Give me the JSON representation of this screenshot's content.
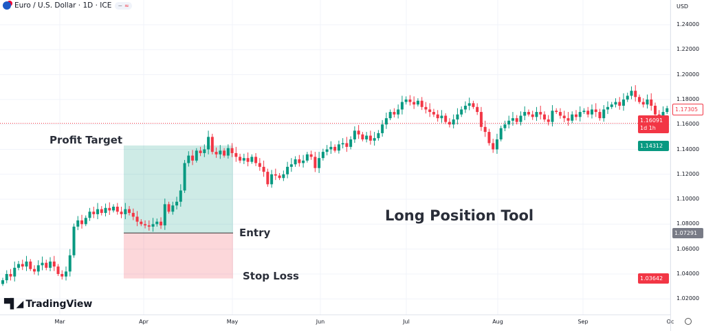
{
  "header": {
    "title": "Euro / U.S. Dollar · 1D · ICE",
    "pill_a": "−",
    "pill_b": "≈"
  },
  "axis": {
    "currency": "USD",
    "ticks": [
      "1.24000",
      "1.22000",
      "1.20000",
      "1.18000",
      "1.16000",
      "1.14000",
      "1.12000",
      "1.10000",
      "1.08000",
      "1.06000",
      "1.04000",
      "1.02000"
    ],
    "badges": {
      "last": "1.17305",
      "current": "1.16091",
      "countdown": "1d 1h",
      "target": "1.14312",
      "entry": "1.07291",
      "stop": "1.03642"
    }
  },
  "xaxis": [
    "Mar",
    "Apr",
    "May",
    "Jun",
    "Jul",
    "Aug",
    "Sep",
    "Oc"
  ],
  "annotations": {
    "profit": "Profit Target",
    "entry": "Entry",
    "stop": "Stop Loss",
    "tool": "Long Position Tool"
  },
  "logo": "TradingView",
  "colors": {
    "up": "#089981",
    "down": "#f23645",
    "target_fill": "rgba(8,153,129,0.2)",
    "stop_fill": "rgba(242,54,69,0.2)"
  },
  "chart_data": {
    "type": "candlestick",
    "ylim": [
      1.0,
      1.25
    ],
    "position": {
      "target": 1.14312,
      "entry": 1.07291,
      "stop": 1.03642
    },
    "closes": [
      1.035,
      1.04,
      1.038,
      1.045,
      1.048,
      1.046,
      1.05,
      1.044,
      1.042,
      1.047,
      1.049,
      1.045,
      1.05,
      1.046,
      1.04,
      1.038,
      1.042,
      1.055,
      1.078,
      1.083,
      1.08,
      1.085,
      1.09,
      1.088,
      1.092,
      1.089,
      1.093,
      1.091,
      1.094,
      1.09,
      1.088,
      1.092,
      1.089,
      1.086,
      1.082,
      1.08,
      1.079,
      1.078,
      1.08,
      1.082,
      1.079,
      1.096,
      1.09,
      1.095,
      1.098,
      1.107,
      1.129,
      1.135,
      1.131,
      1.139,
      1.137,
      1.14,
      1.15,
      1.138,
      1.136,
      1.139,
      1.135,
      1.141,
      1.137,
      1.134,
      1.131,
      1.133,
      1.13,
      1.134,
      1.129,
      1.126,
      1.122,
      1.112,
      1.12,
      1.119,
      1.117,
      1.12,
      1.126,
      1.128,
      1.132,
      1.129,
      1.131,
      1.136,
      1.134,
      1.125,
      1.133,
      1.138,
      1.14,
      1.142,
      1.139,
      1.144,
      1.145,
      1.142,
      1.148,
      1.155,
      1.152,
      1.148,
      1.151,
      1.147,
      1.149,
      1.153,
      1.16,
      1.165,
      1.17,
      1.168,
      1.172,
      1.178,
      1.18,
      1.178,
      1.176,
      1.179,
      1.174,
      1.172,
      1.17,
      1.168,
      1.165,
      1.167,
      1.162,
      1.16,
      1.164,
      1.168,
      1.172,
      1.175,
      1.177,
      1.174,
      1.17,
      1.158,
      1.154,
      1.145,
      1.14,
      1.148,
      1.157,
      1.16,
      1.163,
      1.165,
      1.162,
      1.167,
      1.17,
      1.168,
      1.166,
      1.17,
      1.168,
      1.164,
      1.162,
      1.171,
      1.17,
      1.167,
      1.165,
      1.163,
      1.168,
      1.166,
      1.17,
      1.171,
      1.168,
      1.172,
      1.17,
      1.165,
      1.172,
      1.174,
      1.176,
      1.178,
      1.175,
      1.18,
      1.183,
      1.187,
      1.182,
      1.178,
      1.176,
      1.18,
      1.175,
      1.168,
      1.164,
      1.17,
      1.173
    ]
  }
}
